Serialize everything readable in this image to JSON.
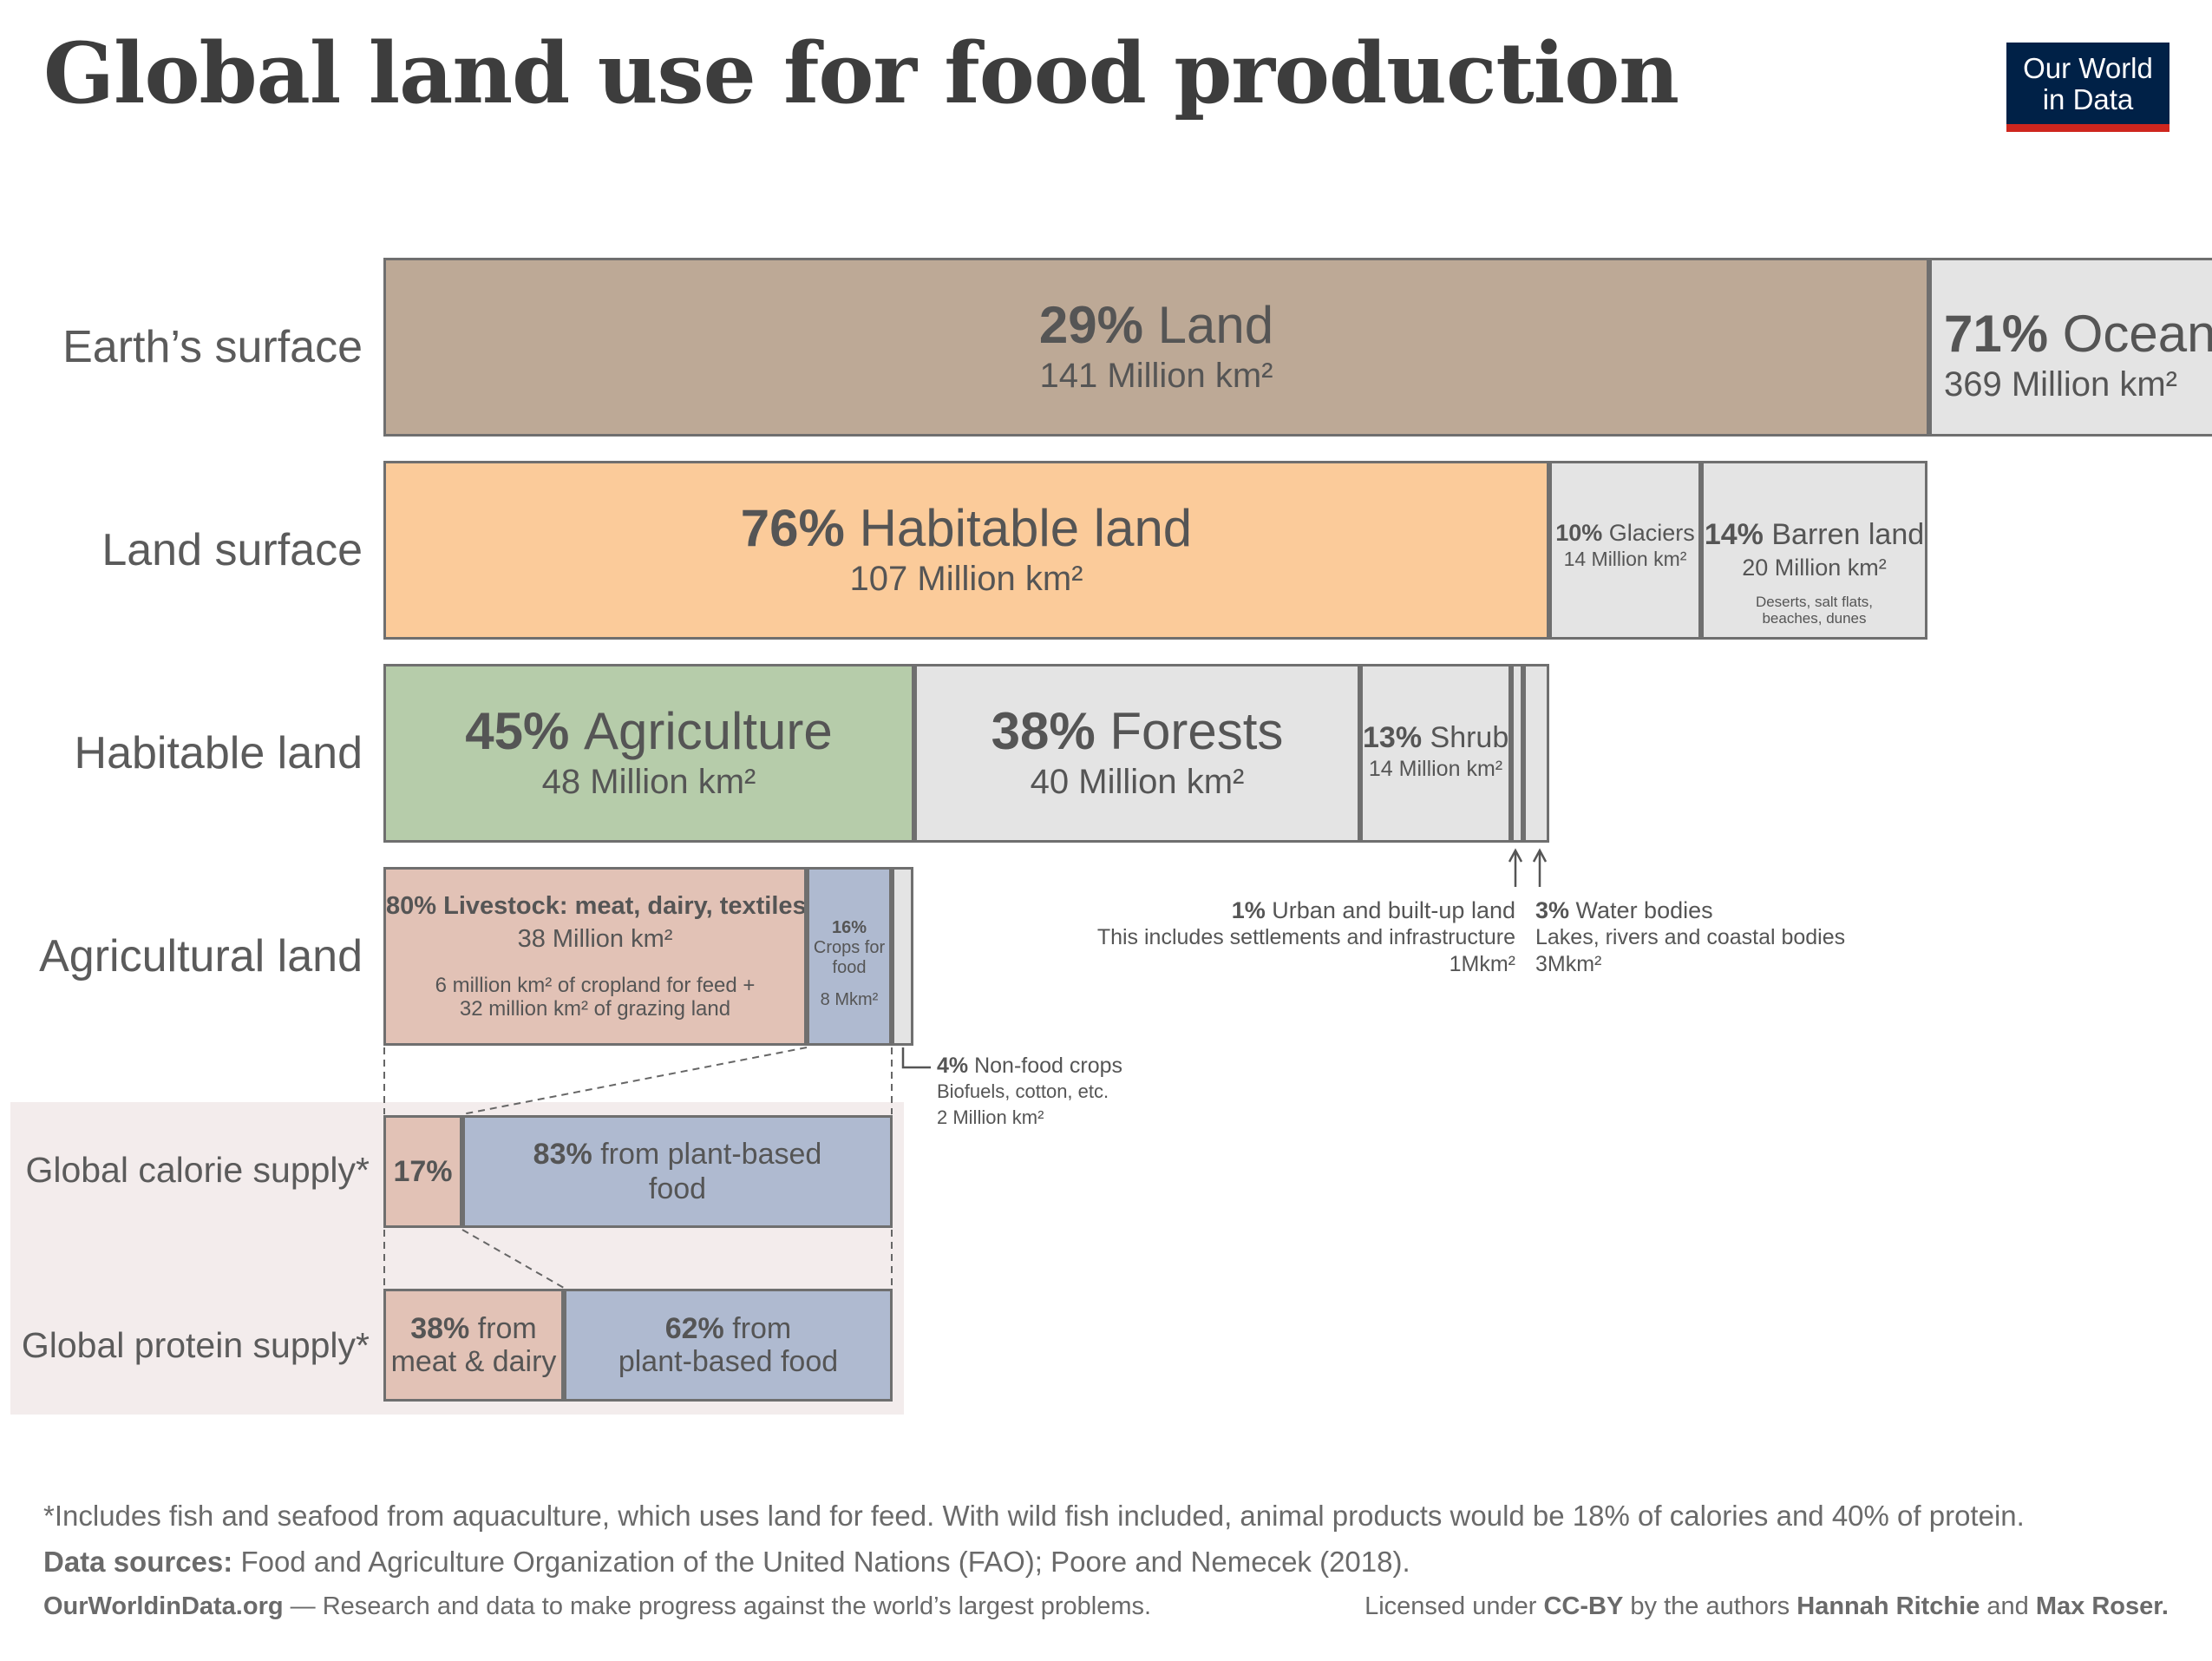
{
  "title": "Global land use for food production",
  "logo": {
    "line1": "Our World",
    "line2": "in Data"
  },
  "row_labels": [
    "Earth’s surface",
    "Land surface",
    "Habitable land",
    "Agricultural land",
    "Global calorie supply*",
    "Global protein supply*"
  ],
  "colors": {
    "land": "#bda996",
    "habitable": "#fbcb9a",
    "agriculture": "#b6ccaa",
    "livestock": "#e2c2b6",
    "crops": "#afbad0",
    "grey": "#e4e4e4",
    "logo_bg": "#002147",
    "logo_bar": "#ce261e"
  },
  "chart_data": {
    "type": "bar",
    "title": "Global land use for food production",
    "series": [
      {
        "name": "Earth’s surface",
        "segments": [
          {
            "label": "Land",
            "percent": 29,
            "value_million_km2": 141,
            "value_text": "141 Million km²"
          },
          {
            "label": "Ocean",
            "percent": 71,
            "value_million_km2": 369,
            "value_text": "369 Million km²"
          }
        ]
      },
      {
        "name": "Land surface",
        "segments": [
          {
            "label": "Habitable land",
            "percent": 76,
            "value_million_km2": 107,
            "value_text": "107 Million km²"
          },
          {
            "label": "Glaciers",
            "percent": 10,
            "value_million_km2": 14,
            "value_text": "14 Million km²"
          },
          {
            "label": "Barren land",
            "percent": 14,
            "value_million_km2": 20,
            "value_text": "20 Million km²",
            "note": "Deserts, salt flats, beaches, dunes"
          }
        ]
      },
      {
        "name": "Habitable land",
        "segments": [
          {
            "label": "Agriculture",
            "percent": 45,
            "value_million_km2": 48,
            "value_text": "48 Million km²"
          },
          {
            "label": "Forests",
            "percent": 38,
            "value_million_km2": 40,
            "value_text": "40 Million km²"
          },
          {
            "label": "Shrub",
            "percent": 13,
            "value_million_km2": 14,
            "value_text": "14 Million km²"
          },
          {
            "label": "Urban and built-up land",
            "percent": 1,
            "value_million_km2": 1,
            "value_text": "1Mkm²",
            "note": "This includes settlements and infrastructure"
          },
          {
            "label": "Water bodies",
            "percent": 3,
            "value_million_km2": 3,
            "value_text": "3Mkm²",
            "note": "Lakes, rivers and coastal bodies"
          }
        ]
      },
      {
        "name": "Agricultural land",
        "segments": [
          {
            "label": "Livestock: meat, dairy, textiles",
            "percent": 80,
            "value_million_km2": 38,
            "value_text": "38 Million km²",
            "note": "6 million km² of cropland for feed + 32 million km² of grazing land"
          },
          {
            "label": "Crops for food",
            "percent": 16,
            "value_million_km2": 8,
            "value_text": "8 Mkm²"
          },
          {
            "label": "Non-food crops",
            "percent": 4,
            "value_million_km2": 2,
            "value_text": "2 Million km²",
            "note": "Biofuels, cotton, etc."
          }
        ]
      },
      {
        "name": "Global calorie supply*",
        "segments": [
          {
            "label": "",
            "percent": 17
          },
          {
            "label": "from plant-based food",
            "percent": 83
          }
        ]
      },
      {
        "name": "Global protein supply*",
        "segments": [
          {
            "label": "from meat & dairy",
            "percent": 38
          },
          {
            "label": "from plant-based food",
            "percent": 62
          }
        ]
      }
    ]
  },
  "text": {
    "land_pct": "29%",
    "land_lbl": "Land",
    "land_val": "141 Million km²",
    "ocean_pct": "71%",
    "ocean_lbl": "Ocean",
    "ocean_val": "369 Million km²",
    "hab_pct": "76%",
    "hab_lbl": "Habitable land",
    "hab_val": "107 Million km²",
    "gla_pct": "10%",
    "gla_lbl": "Glaciers",
    "gla_val": "14 Million km²",
    "bar_pct": "14%",
    "bar_lbl": "Barren land",
    "bar_val": "20 Million km²",
    "bar_note1": "Deserts, salt flats,",
    "bar_note2": "beaches, dunes",
    "agr_pct": "45%",
    "agr_lbl": "Agriculture",
    "agr_val": "48 Million km²",
    "for_pct": "38%",
    "for_lbl": "Forests",
    "for_val": "40 Million km²",
    "shr_pct": "13%",
    "shr_lbl": "Shrub",
    "shr_val": "14 Million km²",
    "urb_pct": "1%",
    "urb_lbl": "Urban and built-up land",
    "urb_note": "This includes settlements and infrastructure",
    "urb_val": "1Mkm²",
    "wat_pct": "3%",
    "wat_lbl": "Water bodies",
    "wat_note": "Lakes, rivers and coastal bodies",
    "wat_val": "3Mkm²",
    "liv_pct": "80%",
    "liv_lbl": "Livestock: meat, dairy, textiles",
    "liv_val": "38 Million km²",
    "liv_note1": "6 million km² of cropland for feed +",
    "liv_note2": "32 million km² of grazing land",
    "crp_pct": "16%",
    "crp_lbl1": "Crops for",
    "crp_lbl2": "food",
    "crp_val": "8 Mkm²",
    "nfc_pct": "4%",
    "nfc_lbl": "Non-food crops",
    "nfc_note": "Biofuels, cotton, etc.",
    "nfc_val": "2 Million km²",
    "cal_animal": "17%",
    "cal_plant_pct": "83%",
    "cal_plant_lbl1": "from plant-based",
    "cal_plant_lbl2": "food",
    "pro_animal_pct": "38%",
    "pro_animal_lbl1": "from",
    "pro_animal_lbl2": "meat & dairy",
    "pro_plant_pct": "62%",
    "pro_plant_lbl1": "from",
    "pro_plant_lbl2": "plant-based food"
  },
  "footer": {
    "note": "*Includes fish and seafood from aquaculture, which uses land for feed. With wild fish included, animal products would be 18% of calories and 40% of protein.",
    "sources_label": "Data sources:",
    "sources": "Food and Agriculture Organization of the United Nations (FAO); Poore and Nemecek (2018).",
    "site": "OurWorldinData.org",
    "tagline": "— Research and data to make progress against the world’s largest problems.",
    "license_pre": "Licensed under",
    "license": "CC-BY",
    "license_mid": "by the authors",
    "author1": "Hannah Ritchie",
    "and": "and",
    "author2": "Max Roser."
  }
}
